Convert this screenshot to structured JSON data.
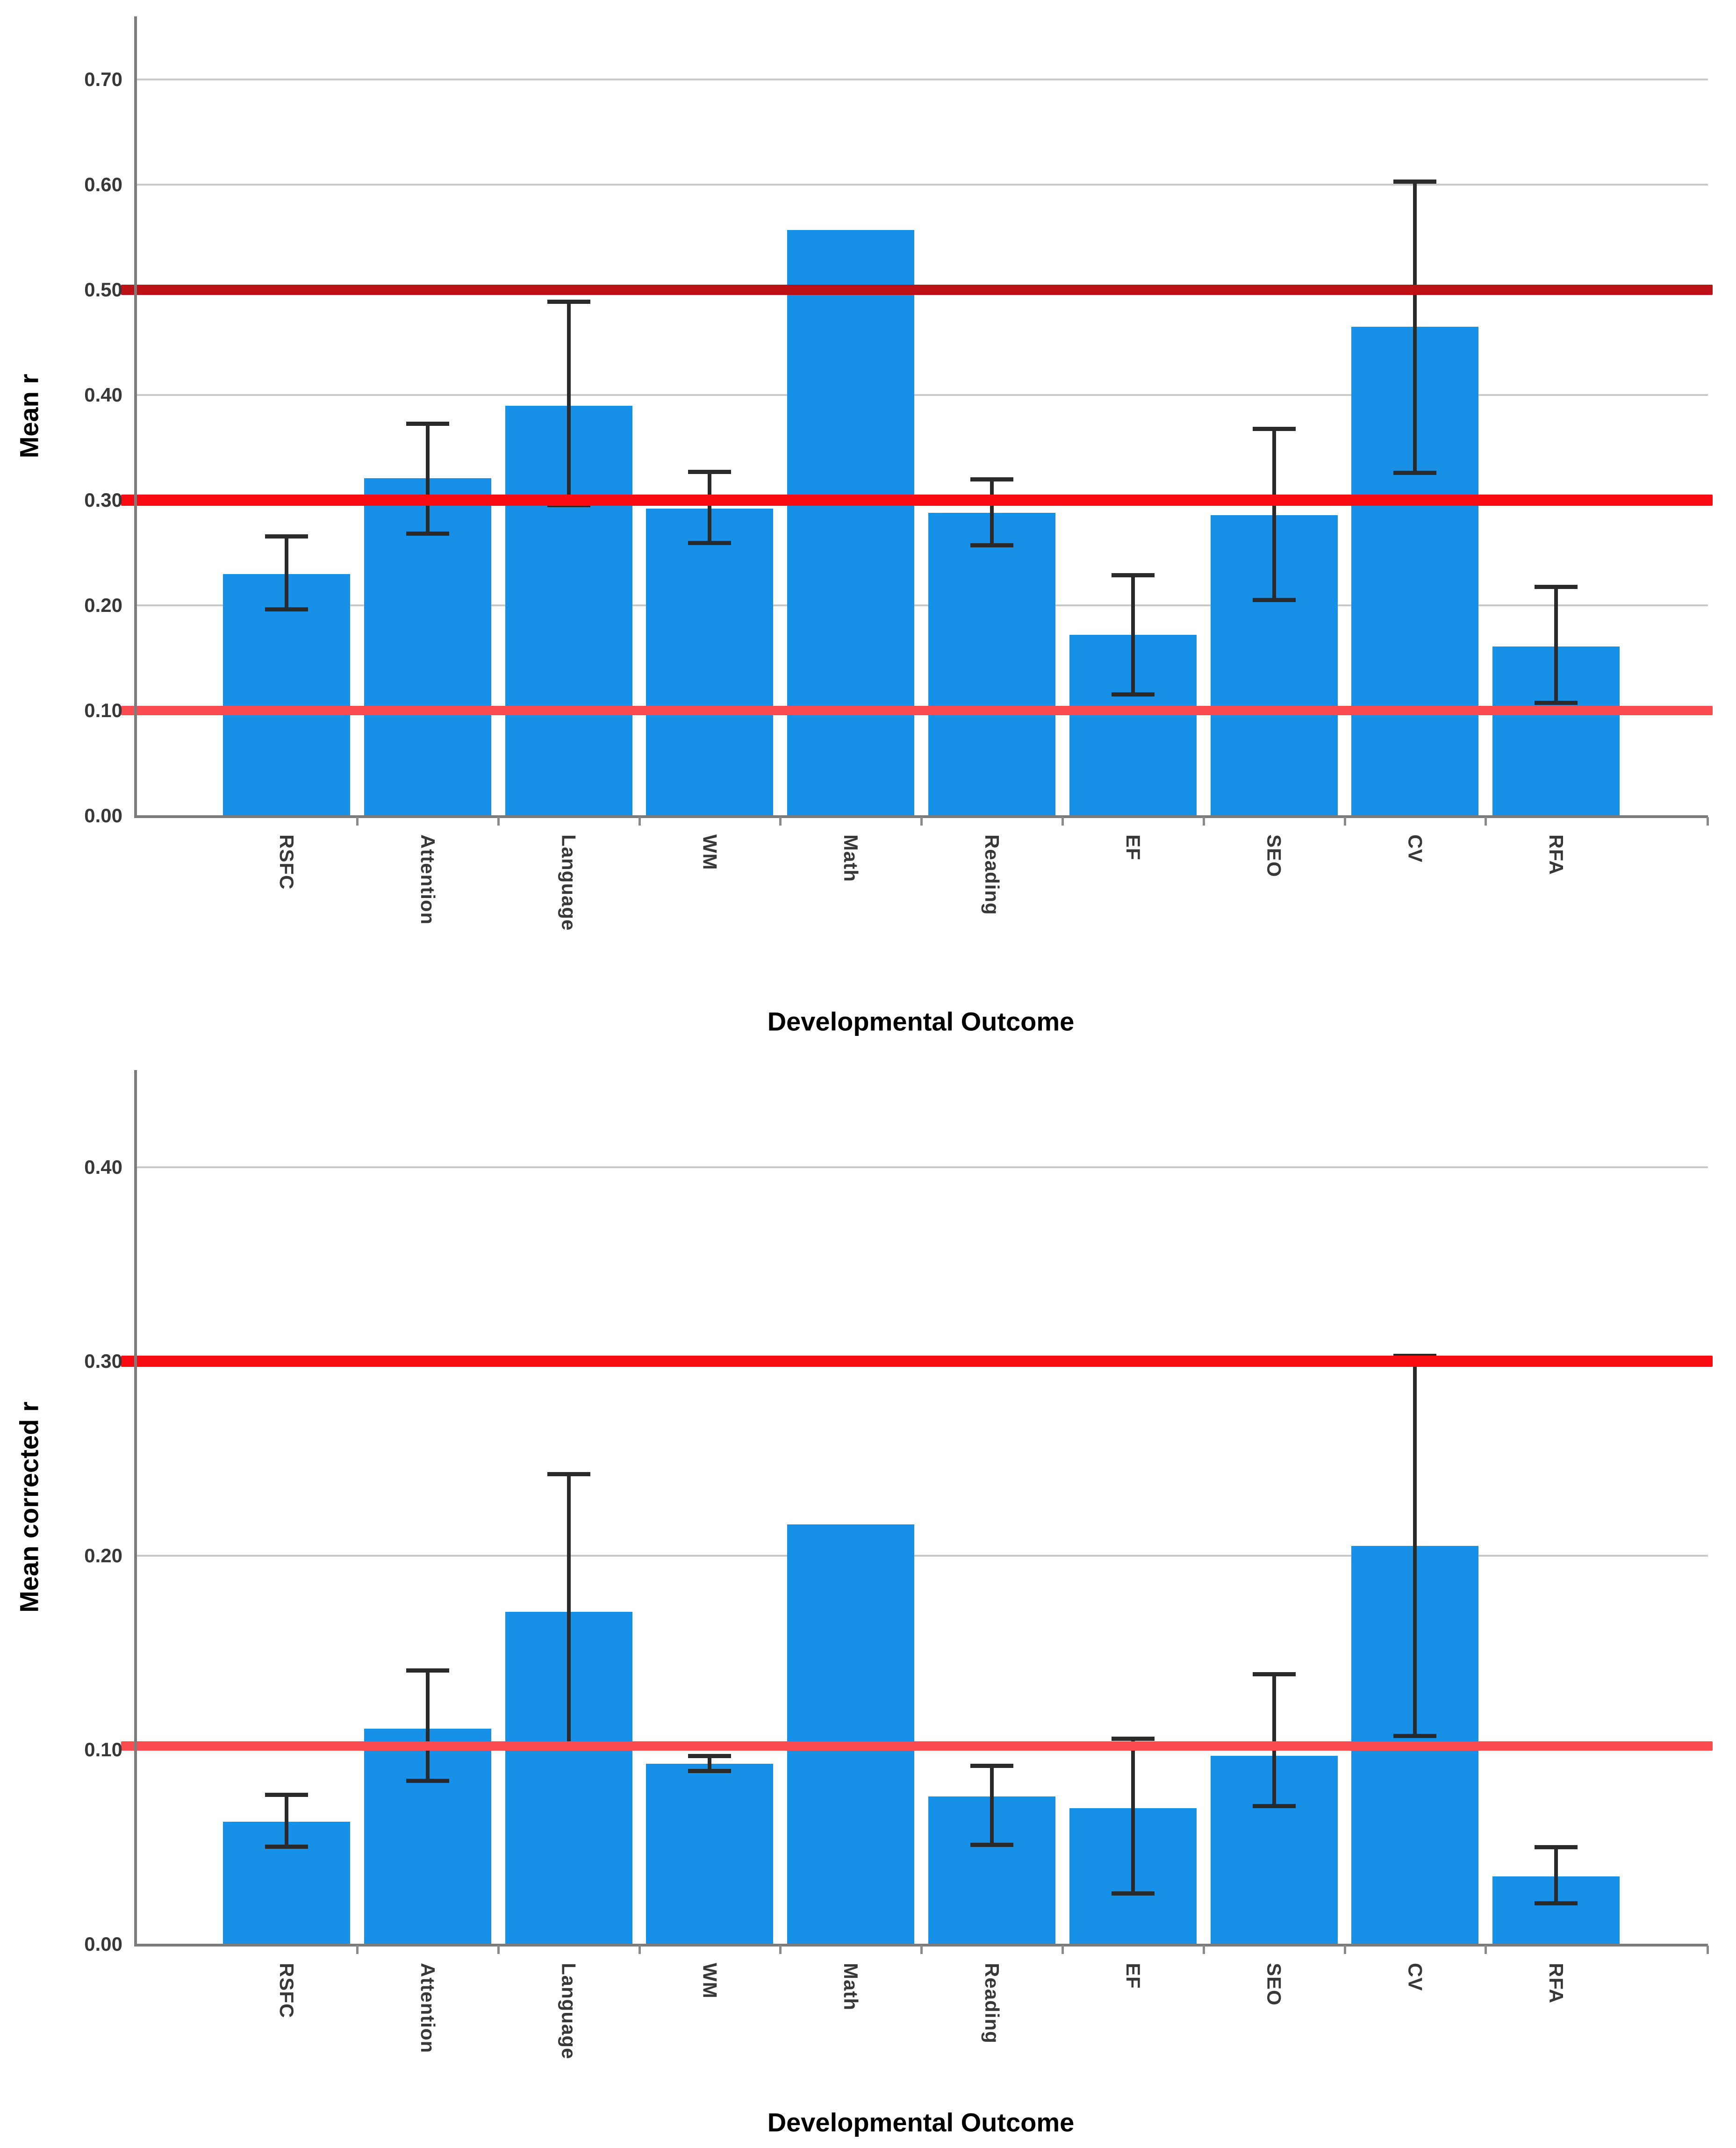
{
  "figure": {
    "background": "#ffffff",
    "bar_color": "#1791E8",
    "grid_color": "#C9C9C9",
    "axis_color": "#7C7C7C",
    "error_bar_color": "#2A2A2A",
    "tick_text_color": "#383838",
    "title_text_color": "#000000"
  },
  "chart_data": [
    {
      "type": "bar",
      "title": "",
      "ylabel": "Mean r",
      "xlabel": "Developmental Outcome",
      "categories": [
        "RSFC",
        "Attention",
        "Language",
        "WM",
        "Math",
        "Reading",
        "EF",
        "SEO",
        "CV",
        "RFA"
      ],
      "values": [
        0.23,
        0.321,
        0.39,
        0.292,
        0.557,
        0.288,
        0.172,
        0.286,
        0.465,
        0.161
      ],
      "error_low": [
        0.196,
        0.268,
        0.295,
        0.259,
        null,
        0.257,
        0.115,
        0.205,
        0.326,
        0.107
      ],
      "error_high": [
        0.266,
        0.373,
        0.489,
        0.327,
        null,
        0.32,
        0.229,
        0.368,
        0.603,
        0.218
      ],
      "ylim": [
        0,
        0.76
      ],
      "yticks": [
        0.0,
        0.1,
        0.2,
        0.3,
        0.4,
        0.5,
        0.6,
        0.7
      ],
      "ytick_labels": [
        "0.00",
        "0.10",
        "0.20",
        "0.30",
        "0.40",
        "0.50",
        "0.60",
        "0.70"
      ],
      "gridlines": [
        0.1,
        0.2,
        0.3,
        0.4,
        0.5,
        0.6,
        0.7
      ],
      "grid_on": true,
      "legend": "none",
      "ref_lines": [
        {
          "value": 0.5,
          "color": "#BD1118",
          "thickness": 22,
          "name": "reference-line-0.50"
        },
        {
          "value": 0.3,
          "color": "#F90D12",
          "thickness": 24,
          "name": "reference-line-0.30"
        },
        {
          "value": 0.1,
          "color": "#F94B50",
          "thickness": 20,
          "name": "reference-line-0.10"
        }
      ]
    },
    {
      "type": "bar",
      "title": "",
      "ylabel": "Mean corrected r",
      "xlabel": "Developmental Outcome",
      "categories": [
        "RSFC",
        "Attention",
        "Language",
        "WM",
        "Math",
        "Reading",
        "EF",
        "SEO",
        "CV",
        "RFA"
      ],
      "values": [
        0.063,
        0.111,
        0.171,
        0.093,
        0.216,
        0.076,
        0.07,
        0.097,
        0.205,
        0.035
      ],
      "error_low": [
        0.05,
        0.084,
        0.103,
        0.089,
        null,
        0.051,
        0.026,
        0.071,
        0.107,
        0.021
      ],
      "error_high": [
        0.077,
        0.141,
        0.242,
        0.097,
        null,
        0.092,
        0.106,
        0.139,
        0.303,
        0.05
      ],
      "ylim": [
        0,
        0.45
      ],
      "yticks": [
        0.0,
        0.1,
        0.2,
        0.3,
        0.4
      ],
      "ytick_labels": [
        "0.00",
        "0.10",
        "0.20",
        "0.30",
        "0.40"
      ],
      "gridlines": [
        0.1,
        0.2,
        0.3,
        0.4
      ],
      "grid_on": true,
      "legend": "none",
      "ref_lines": [
        {
          "value": 0.3,
          "color": "#F90D12",
          "thickness": 24,
          "name": "reference-line-0.30"
        },
        {
          "value": 0.102,
          "color": "#F94B50",
          "thickness": 20,
          "name": "reference-line-0.10"
        }
      ]
    }
  ]
}
